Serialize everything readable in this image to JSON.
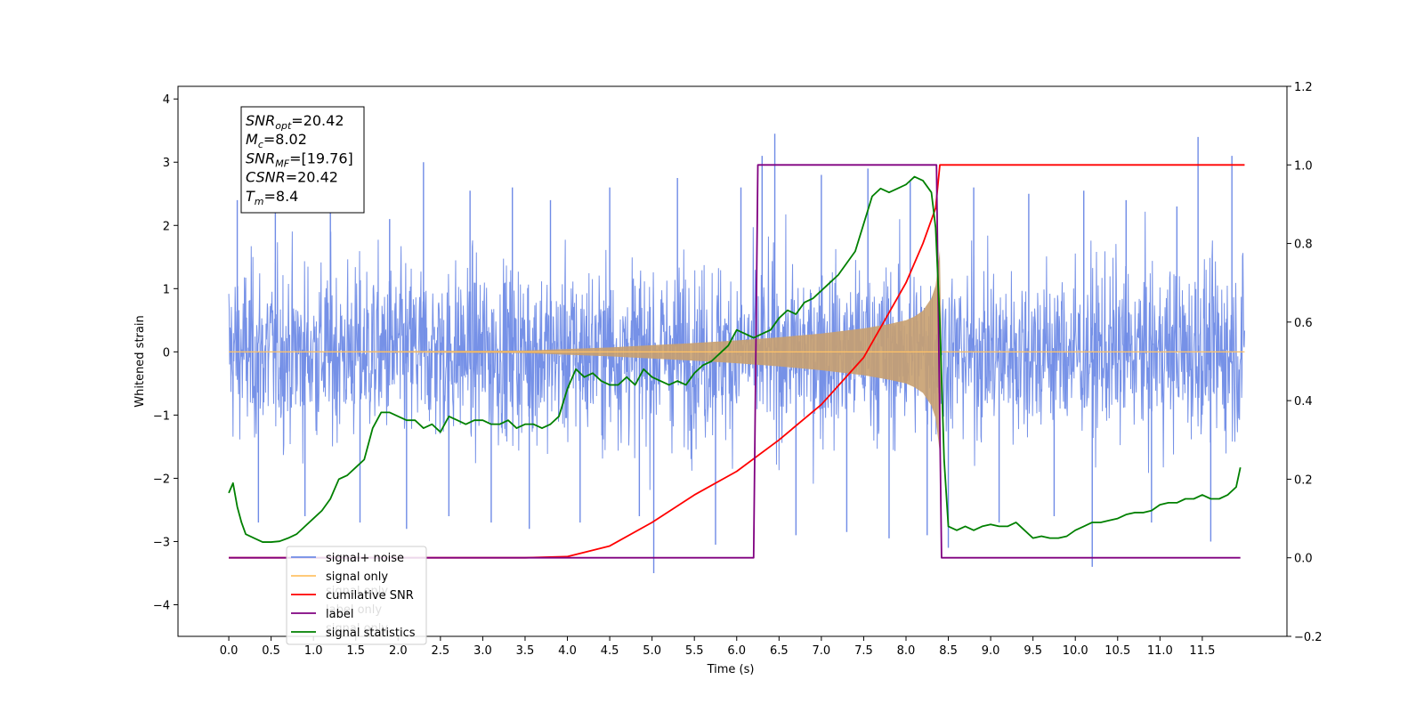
{
  "chart_data": {
    "type": "line",
    "xlabel": "Time (s)",
    "ylabel": "Whitened strain",
    "xlim": [
      -0.6,
      12.5
    ],
    "ylim_left": [
      -4.5,
      4.2
    ],
    "ylim_right": [
      -0.2,
      1.2
    ],
    "x_ticks": [
      0.0,
      0.5,
      1.0,
      1.5,
      2.0,
      2.5,
      3.0,
      3.5,
      4.0,
      4.5,
      5.0,
      5.5,
      6.0,
      6.5,
      7.0,
      7.5,
      8.0,
      8.5,
      9.0,
      9.5,
      10.0,
      10.5,
      11.0,
      11.5
    ],
    "x_tick_labels": [
      "0.0",
      "0.5",
      "1.0",
      "1.5",
      "2.0",
      "2.5",
      "3.0",
      "3.5",
      "4.0",
      "4.5",
      "5.0",
      "5.5",
      "6.0",
      "6.5",
      "7.0",
      "7.5",
      "8.0",
      "8.5",
      "9.0",
      "9.5",
      "10.0",
      "10.5",
      "11.0",
      "11.5"
    ],
    "y_ticks_left": [
      -4,
      -3,
      -2,
      -1,
      0,
      1,
      2,
      3,
      4
    ],
    "y_tick_labels_left": [
      "−4",
      "−3",
      "−2",
      "−1",
      "0",
      "1",
      "2",
      "3",
      "4"
    ],
    "y_ticks_right": [
      -0.2,
      0.0,
      0.2,
      0.4,
      0.6,
      0.8,
      1.0,
      1.2
    ],
    "y_tick_labels_right": [
      "−0.2",
      "0.0",
      "0.2",
      "0.4",
      "0.6",
      "0.8",
      "1.0",
      "1.2"
    ],
    "annotation": {
      "lines": [
        {
          "main": "SNR",
          "sub": "opt",
          "rest": "=20.42"
        },
        {
          "main": "M",
          "sub": "c",
          "rest": "=8.02"
        },
        {
          "main": "SNR",
          "sub": "MF",
          "rest": "=[19.76]"
        },
        {
          "main": "CSNR",
          "sub": "",
          "rest": "=20.42"
        },
        {
          "main": "T",
          "sub": "m",
          "rest": "=8.4"
        }
      ]
    },
    "legend": {
      "position": "lower-left",
      "entries": [
        {
          "label": "signal+ noise",
          "color": "#6f8be6"
        },
        {
          "label": "signal only",
          "color": "#ffc266"
        },
        {
          "label": "cumilative SNR",
          "color": "#ff0000"
        },
        {
          "label": "label",
          "color": "#800080"
        },
        {
          "label": "signal statistics",
          "color": "#008000"
        }
      ],
      "hidden_labels": [
        "signal only",
        "label only",
        "signal only"
      ]
    },
    "series": [
      {
        "name": "signal+ noise",
        "axis": "left",
        "color": "#6f8be6",
        "representation": "noise band",
        "x_range": [
          0.0,
          12.0
        ],
        "typical_amplitude": 1.3,
        "spikes": [
          {
            "x": 0.1,
            "y": 2.4
          },
          {
            "x": 0.35,
            "y": -2.7
          },
          {
            "x": 0.55,
            "y": 2.6
          },
          {
            "x": 0.9,
            "y": -2.6
          },
          {
            "x": 1.2,
            "y": 2.55
          },
          {
            "x": 1.55,
            "y": -2.7
          },
          {
            "x": 1.9,
            "y": 2.1
          },
          {
            "x": 2.1,
            "y": -2.8
          },
          {
            "x": 2.3,
            "y": 3.0
          },
          {
            "x": 2.6,
            "y": -2.6
          },
          {
            "x": 2.85,
            "y": 2.55
          },
          {
            "x": 3.1,
            "y": -2.7
          },
          {
            "x": 3.35,
            "y": 2.6
          },
          {
            "x": 3.55,
            "y": -2.8
          },
          {
            "x": 3.8,
            "y": 2.4
          },
          {
            "x": 4.15,
            "y": -2.7
          },
          {
            "x": 4.5,
            "y": 2.6
          },
          {
            "x": 4.85,
            "y": -2.6
          },
          {
            "x": 5.02,
            "y": -3.5
          },
          {
            "x": 5.3,
            "y": 2.75
          },
          {
            "x": 5.75,
            "y": -3.05
          },
          {
            "x": 6.05,
            "y": 2.6
          },
          {
            "x": 6.3,
            "y": 3.1
          },
          {
            "x": 6.45,
            "y": 3.45
          },
          {
            "x": 6.7,
            "y": -2.9
          },
          {
            "x": 7.0,
            "y": 2.8
          },
          {
            "x": 7.3,
            "y": -2.85
          },
          {
            "x": 7.55,
            "y": 2.9
          },
          {
            "x": 7.8,
            "y": -2.95
          },
          {
            "x": 8.05,
            "y": 2.7
          },
          {
            "x": 8.25,
            "y": -2.9
          },
          {
            "x": 8.5,
            "y": -3.1
          },
          {
            "x": 8.8,
            "y": 2.6
          },
          {
            "x": 9.1,
            "y": -2.7
          },
          {
            "x": 9.45,
            "y": 2.5
          },
          {
            "x": 9.75,
            "y": -2.6
          },
          {
            "x": 10.1,
            "y": 2.55
          },
          {
            "x": 10.2,
            "y": -3.4
          },
          {
            "x": 10.6,
            "y": 2.4
          },
          {
            "x": 10.9,
            "y": -2.7
          },
          {
            "x": 11.2,
            "y": 2.3
          },
          {
            "x": 11.45,
            "y": 3.4
          },
          {
            "x": 11.6,
            "y": -3.0
          },
          {
            "x": 11.85,
            "y": 3.1
          }
        ]
      },
      {
        "name": "signal only",
        "axis": "left",
        "color": "#c8a070",
        "representation": "chirp envelope",
        "x": [
          0.0,
          3.5,
          4.5,
          5.5,
          6.0,
          6.5,
          7.0,
          7.5,
          7.8,
          8.0,
          8.1,
          8.2,
          8.3,
          8.35,
          8.4,
          8.42,
          12.0
        ],
        "amplitude": [
          0.0,
          0.02,
          0.07,
          0.14,
          0.18,
          0.23,
          0.29,
          0.37,
          0.44,
          0.5,
          0.56,
          0.65,
          0.85,
          1.05,
          1.6,
          0.0,
          0.0
        ]
      },
      {
        "name": "cumilative SNR",
        "axis": "right",
        "color": "#ff0000",
        "x": [
          0.0,
          3.5,
          4.0,
          4.5,
          5.0,
          5.5,
          6.0,
          6.5,
          7.0,
          7.5,
          8.0,
          8.2,
          8.35,
          8.4,
          8.41,
          12.0
        ],
        "y": [
          0.0,
          0.0,
          0.003,
          0.03,
          0.09,
          0.16,
          0.22,
          0.3,
          0.39,
          0.51,
          0.7,
          0.8,
          0.89,
          1.0,
          1.0,
          1.0
        ]
      },
      {
        "name": "label",
        "axis": "right",
        "color": "#800080",
        "x": [
          0.0,
          6.2,
          6.25,
          8.36,
          8.42,
          11.95
        ],
        "y": [
          0.0,
          0.0,
          1.0,
          1.0,
          0.0,
          0.0
        ]
      },
      {
        "name": "signal statistics",
        "axis": "right",
        "color": "#008000",
        "x": [
          0.0,
          0.05,
          0.1,
          0.15,
          0.2,
          0.3,
          0.4,
          0.5,
          0.6,
          0.7,
          0.8,
          0.9,
          1.0,
          1.1,
          1.2,
          1.3,
          1.4,
          1.5,
          1.6,
          1.7,
          1.8,
          1.9,
          2.0,
          2.1,
          2.2,
          2.3,
          2.4,
          2.5,
          2.6,
          2.7,
          2.8,
          2.9,
          3.0,
          3.1,
          3.2,
          3.3,
          3.4,
          3.5,
          3.6,
          3.7,
          3.8,
          3.9,
          4.0,
          4.1,
          4.2,
          4.3,
          4.4,
          4.5,
          4.6,
          4.7,
          4.8,
          4.9,
          5.0,
          5.1,
          5.2,
          5.3,
          5.4,
          5.5,
          5.6,
          5.7,
          5.8,
          5.9,
          6.0,
          6.1,
          6.2,
          6.3,
          6.4,
          6.5,
          6.6,
          6.7,
          6.8,
          6.9,
          7.0,
          7.1,
          7.2,
          7.3,
          7.4,
          7.5,
          7.6,
          7.7,
          7.8,
          7.9,
          8.0,
          8.1,
          8.2,
          8.3,
          8.35,
          8.4,
          8.45,
          8.5,
          8.6,
          8.7,
          8.8,
          8.9,
          9.0,
          9.1,
          9.2,
          9.3,
          9.4,
          9.5,
          9.6,
          9.7,
          9.8,
          9.9,
          10.0,
          10.1,
          10.2,
          10.3,
          10.4,
          10.5,
          10.6,
          10.7,
          10.8,
          10.9,
          11.0,
          11.1,
          11.2,
          11.3,
          11.4,
          11.5,
          11.6,
          11.7,
          11.8,
          11.9,
          11.95
        ],
        "y": [
          0.165,
          0.19,
          0.13,
          0.09,
          0.06,
          0.05,
          0.04,
          0.04,
          0.042,
          0.05,
          0.06,
          0.08,
          0.1,
          0.12,
          0.15,
          0.2,
          0.21,
          0.23,
          0.25,
          0.33,
          0.37,
          0.37,
          0.36,
          0.35,
          0.35,
          0.33,
          0.34,
          0.32,
          0.36,
          0.35,
          0.34,
          0.35,
          0.35,
          0.34,
          0.34,
          0.35,
          0.33,
          0.34,
          0.34,
          0.33,
          0.34,
          0.36,
          0.43,
          0.48,
          0.46,
          0.47,
          0.45,
          0.44,
          0.44,
          0.46,
          0.44,
          0.48,
          0.46,
          0.45,
          0.44,
          0.45,
          0.44,
          0.47,
          0.49,
          0.5,
          0.52,
          0.54,
          0.58,
          0.57,
          0.56,
          0.57,
          0.58,
          0.61,
          0.63,
          0.62,
          0.65,
          0.66,
          0.68,
          0.7,
          0.72,
          0.75,
          0.78,
          0.85,
          0.92,
          0.94,
          0.93,
          0.94,
          0.95,
          0.97,
          0.96,
          0.93,
          0.84,
          0.6,
          0.25,
          0.08,
          0.07,
          0.08,
          0.07,
          0.08,
          0.085,
          0.08,
          0.08,
          0.09,
          0.07,
          0.05,
          0.055,
          0.05,
          0.05,
          0.055,
          0.07,
          0.08,
          0.09,
          0.09,
          0.095,
          0.1,
          0.11,
          0.115,
          0.115,
          0.12,
          0.135,
          0.14,
          0.14,
          0.15,
          0.15,
          0.16,
          0.15,
          0.15,
          0.16,
          0.18,
          0.23
        ]
      }
    ]
  }
}
